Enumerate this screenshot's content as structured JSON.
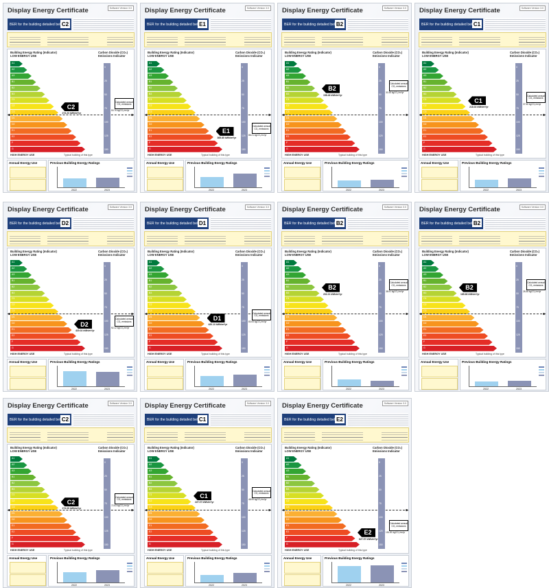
{
  "certificate_title": "Display Energy Certificate",
  "banner_text": "BER for the building detailed below is:",
  "software_label": "Software Version 3.0",
  "rating_header": "Building Energy Rating (Indicator)",
  "low_use": "LOW ENERGY USE",
  "high_use": "HIGH ENERGY USE",
  "co2_header": "Carbon Dioxide (CO₂) Emissions Indicator",
  "typical": "Typical building of this type",
  "annual_title": "Annual Energy Use",
  "previous_title": "Previous Building Energy Ratings",
  "calc_text": "Calculated annual CO₂ emissions",
  "scale": [
    {
      "label": "A1",
      "color": "#007a3d"
    },
    {
      "label": "A2",
      "color": "#1a9641"
    },
    {
      "label": "A3",
      "color": "#33a532"
    },
    {
      "label": "B1",
      "color": "#66b32e"
    },
    {
      "label": "B2",
      "color": "#8cc63f"
    },
    {
      "label": "B3",
      "color": "#b5d334"
    },
    {
      "label": "C1",
      "color": "#d7df23"
    },
    {
      "label": "C2",
      "color": "#f7e31a"
    },
    {
      "label": "C3",
      "color": "#fcd116"
    },
    {
      "label": "D1",
      "color": "#fbb034"
    },
    {
      "label": "D2",
      "color": "#f7941d"
    },
    {
      "label": "E1",
      "color": "#f26b21"
    },
    {
      "label": "E2",
      "color": "#ee4c23"
    },
    {
      "label": "F",
      "color": "#e52d27"
    },
    {
      "label": "G",
      "color": "#d71f26"
    }
  ],
  "co2_ticks": [
    "0",
    "25",
    "50",
    "75",
    "100",
    "125",
    "150"
  ],
  "certs": [
    {
      "rating": "C2",
      "index": 7,
      "value": "273.23 kWh/m²/yr",
      "co2": "53.76 kgCO₂/m²/yr",
      "years": [
        "2022",
        "2023"
      ],
      "bars": [
        0.45,
        0.5
      ]
    },
    {
      "rating": "E1",
      "index": 11,
      "value": "365.85 kWh/m²/yr",
      "co2": "86.21 kgCO₂/m²/yr",
      "years": [
        "2022",
        "2023"
      ],
      "bars": [
        0.55,
        0.7
      ]
    },
    {
      "rating": "B2",
      "index": 4,
      "value": "158.46 kWh/m²/yr",
      "co2": "30.35 kgCO₂/m²/yr",
      "years": [
        "2022",
        "2023"
      ],
      "bars": [
        0.35,
        0.4
      ]
    },
    {
      "rating": "C1",
      "index": 6,
      "value": "218.02 kWh/m²/yr",
      "co2": "37.56 kgCO₂/m²/yr",
      "years": [
        "2022",
        "2023"
      ],
      "bars": [
        0.4,
        0.45
      ]
    },
    {
      "rating": "D2",
      "index": 10,
      "value": "420.02 kWh/m²/yr",
      "co2": "92.12 kgCO₂/m²/yr",
      "years": [
        "2022",
        "2023"
      ],
      "bars": [
        0.8,
        0.75
      ]
    },
    {
      "rating": "D1",
      "index": 9,
      "value": "420.13 kWh/m²/yr",
      "co2": "83.05 kgCO₂/m²/yr",
      "years": [
        "2022",
        "2023"
      ],
      "bars": [
        0.55,
        0.6
      ]
    },
    {
      "rating": "B2",
      "index": 4,
      "value": "202.21 kWh/m²/yr",
      "co2": "38.91 kgCO₂/m²/yr",
      "years": [
        "2022",
        "2023"
      ],
      "bars": [
        0.35,
        0.3
      ]
    },
    {
      "rating": "B2",
      "index": 4,
      "value": "185.66 kWh/m²/yr",
      "co2": "28.38 kgCO₂/m²/yr",
      "years": [
        "2022",
        "2023"
      ],
      "bars": [
        0.25,
        0.3
      ]
    },
    {
      "rating": "C2",
      "index": 7,
      "value": "273.05 kWh/m²/yr",
      "co2": "72.53 kgCO₂/m²/yr",
      "years": [
        "2022",
        "2023"
      ],
      "bars": [
        0.55,
        0.65
      ]
    },
    {
      "rating": "C1",
      "index": 6,
      "value": "227.07 kWh/m²/yr",
      "co2": "48.99 kgCO₂/m²/yr",
      "years": [
        "2022",
        "2023"
      ],
      "bars": [
        0.4,
        0.5
      ]
    },
    {
      "rating": "E2",
      "index": 12,
      "value": "627.57 kWh/m²/yr",
      "co2": "151.81 kgCO₂/m²/yr",
      "years": [
        "2022",
        "2023"
      ],
      "bars": [
        0.85,
        0.9
      ]
    }
  ]
}
